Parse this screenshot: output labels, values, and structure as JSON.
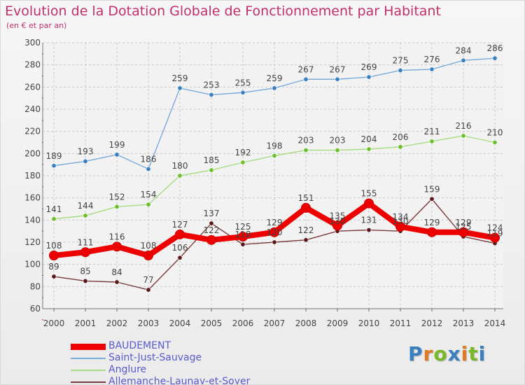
{
  "title": "Evolution de la Dotation Globale de Fonctionnement par Habitant",
  "subtitle": "(en € et par an)",
  "logo": {
    "letters": [
      {
        "ch": "P",
        "color": "#3a7fc0"
      },
      {
        "ch": "r",
        "color": "#e07a20"
      },
      {
        "ch": "o",
        "color": "#7ab82a"
      },
      {
        "ch": "x",
        "color": "#3a7fc0"
      },
      {
        "ch": "i",
        "color": "#e07a20"
      },
      {
        "ch": "t",
        "color": "#7ab82a"
      },
      {
        "ch": "i",
        "color": "#3a7fc0"
      }
    ]
  },
  "chart_data": {
    "type": "line",
    "x": [
      2000,
      2001,
      2002,
      2003,
      2004,
      2005,
      2006,
      2007,
      2008,
      2009,
      2010,
      2011,
      2012,
      2013,
      2014
    ],
    "ylim": [
      60,
      300
    ],
    "yticks": [
      60,
      80,
      100,
      120,
      140,
      160,
      180,
      200,
      220,
      240,
      260,
      280,
      300
    ],
    "grid": true,
    "legend_position": "bottom-left",
    "series": [
      {
        "name": "BAUDEMENT",
        "color": "#ee0000",
        "marker_color": "#dd0000",
        "values": [
          108,
          111,
          116,
          108,
          127,
          122,
          125,
          129,
          151,
          135,
          155,
          134,
          129,
          129,
          124
        ],
        "labels": [
          "108",
          "111",
          "116",
          "108",
          "127",
          "122",
          "125",
          "129",
          "151",
          "135",
          "155",
          "134",
          "129",
          "129",
          "124"
        ]
      },
      {
        "name": "Saint-Just-Sauvage",
        "color": "#7aaadc",
        "marker_color": "#3a7fc0",
        "values": [
          189,
          193,
          199,
          186,
          259,
          253,
          255,
          259,
          267,
          267,
          269,
          275,
          276,
          284,
          286
        ],
        "labels": [
          "189",
          "193",
          "199",
          "186",
          "259",
          "253",
          "255",
          "259",
          "267",
          "267",
          "269",
          "275",
          "276",
          "284",
          "286"
        ]
      },
      {
        "name": "Anglure",
        "color": "#a8dc80",
        "marker_color": "#6abf2a",
        "values": [
          141,
          144,
          152,
          154,
          180,
          185,
          192,
          198,
          203,
          203,
          204,
          206,
          211,
          216,
          210
        ],
        "labels": [
          "141",
          "144",
          "152",
          "154",
          "180",
          "185",
          "192",
          "198",
          "203",
          "203",
          "204",
          "206",
          "211",
          "216",
          "210"
        ]
      },
      {
        "name": "Allemanche-Launay-et-Soyer",
        "color": "#7a3a3a",
        "marker_color": "#5a1818",
        "values": [
          89,
          85,
          84,
          77,
          106,
          137,
          118,
          120,
          122,
          130,
          131,
          130,
          159,
          125,
          119
        ],
        "labels": [
          "89",
          "85",
          "84",
          "77",
          "106",
          "137",
          "118",
          "120",
          "122",
          "130",
          "131",
          "130",
          "159",
          "125",
          "119"
        ]
      }
    ]
  }
}
